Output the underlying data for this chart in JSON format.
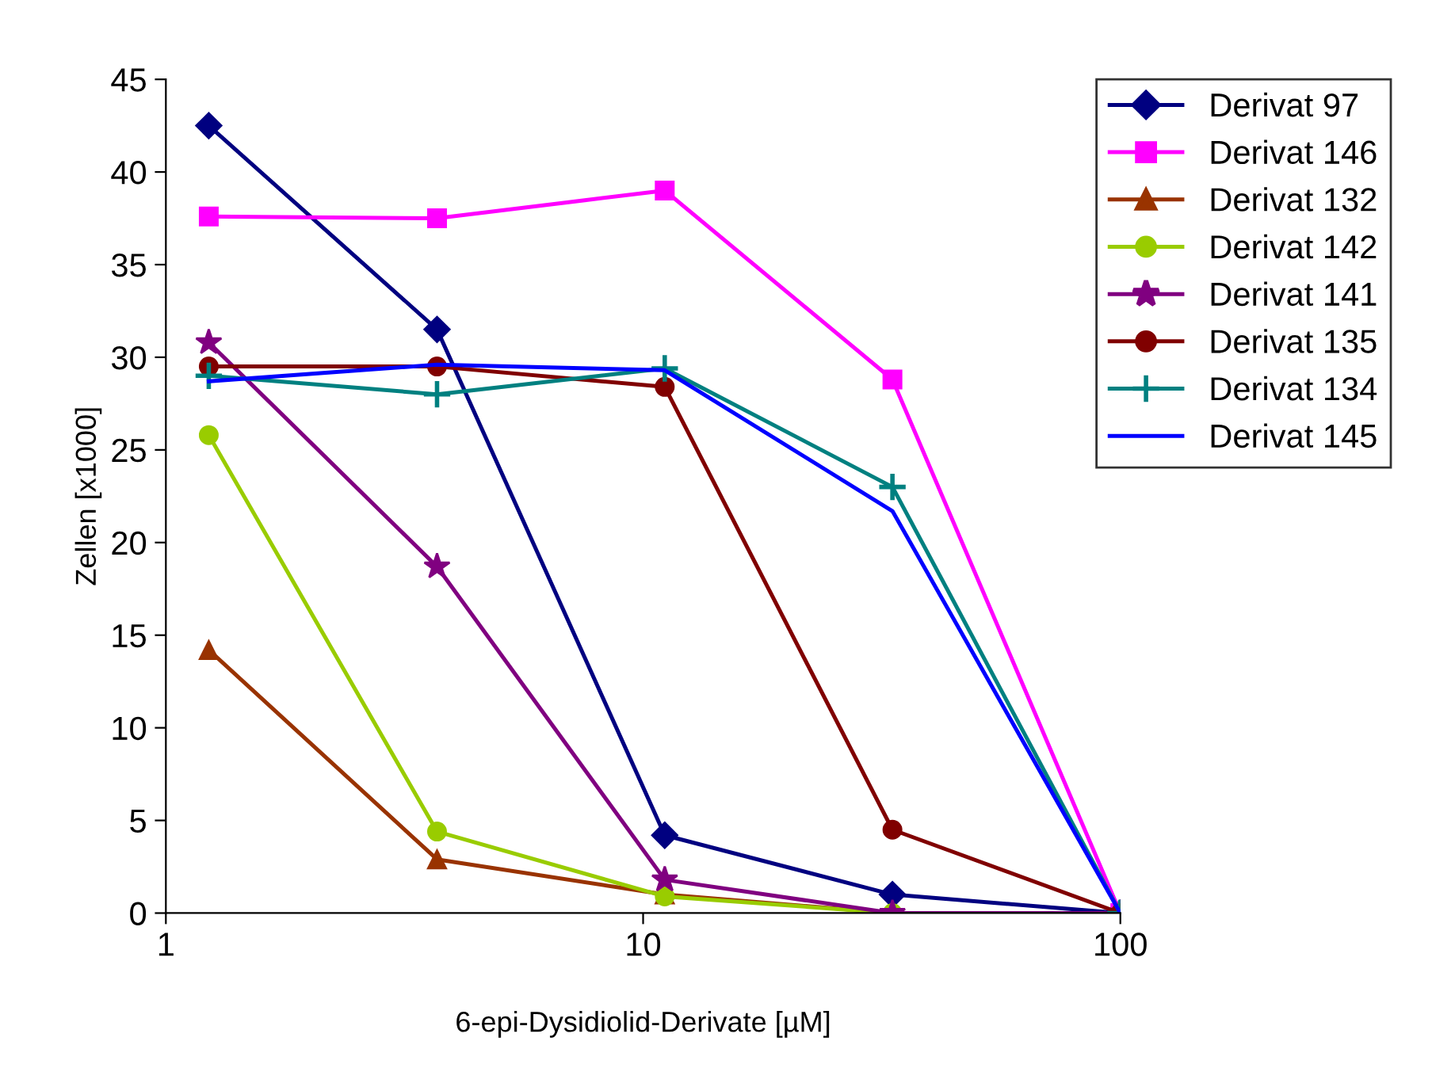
{
  "chart_data": {
    "type": "line",
    "xlabel": "6-epi-Dysidiolid-Derivate [µM]",
    "ylabel": "Zellen [x1000]",
    "x": [
      1.23,
      3.7,
      11.1,
      33.3,
      100
    ],
    "series": [
      {
        "name": "Derivat 97",
        "color": "#000080",
        "marker": "diamond",
        "values": [
          42.5,
          31.5,
          4.2,
          1.0,
          0
        ]
      },
      {
        "name": "Derivat 146",
        "color": "#ff00ff",
        "marker": "square",
        "values": [
          37.6,
          37.5,
          39.0,
          28.8,
          0
        ]
      },
      {
        "name": "Derivat 132",
        "color": "#993300",
        "marker": "triangle",
        "values": [
          14.2,
          2.9,
          1.0,
          0,
          0
        ]
      },
      {
        "name": "Derivat 142",
        "color": "#99cc00",
        "marker": "circle",
        "values": [
          25.8,
          4.4,
          0.9,
          0,
          0
        ]
      },
      {
        "name": "Derivat 141",
        "color": "#800080",
        "marker": "star",
        "values": [
          30.8,
          18.7,
          1.8,
          0,
          0
        ]
      },
      {
        "name": "Derivat 135",
        "color": "#800000",
        "marker": "circle",
        "values": [
          29.5,
          29.5,
          28.4,
          4.5,
          0
        ]
      },
      {
        "name": "Derivat 134",
        "color": "#008080",
        "marker": "cross",
        "values": [
          29.0,
          28.0,
          29.4,
          23.0,
          0
        ]
      },
      {
        "name": "Derivat 145",
        "color": "#0000ff",
        "marker": "none",
        "values": [
          28.7,
          29.6,
          29.3,
          21.7,
          0
        ]
      }
    ],
    "log": "x",
    "xlim": [
      1,
      100
    ],
    "xticks": [
      1,
      10,
      100
    ],
    "ylim": [
      0,
      45
    ],
    "yticks": [
      0,
      5,
      10,
      15,
      20,
      25,
      30,
      35,
      40,
      45
    ],
    "grid": false,
    "legend": "right",
    "line_style": "solid"
  }
}
